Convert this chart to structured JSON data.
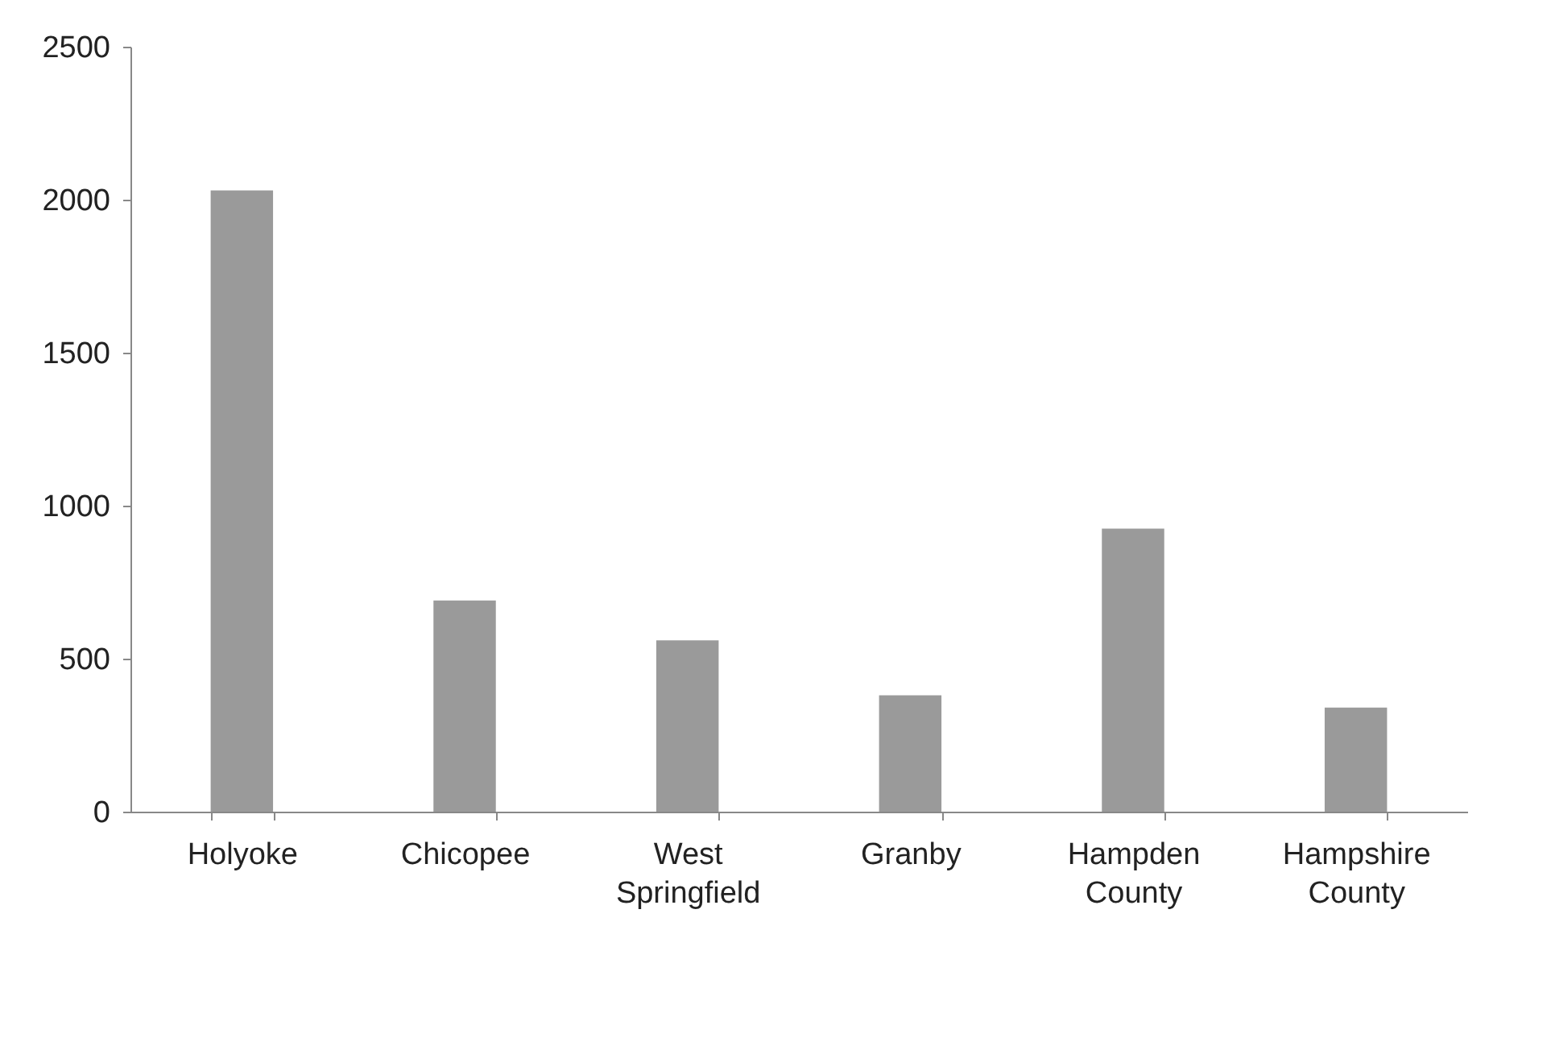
{
  "chart_data": {
    "type": "bar",
    "categories": [
      "Holyoke",
      "Chicopee",
      "West Springfield",
      "Granby",
      "Hampden County",
      "Hampshire County"
    ],
    "values": [
      2030,
      690,
      560,
      380,
      925,
      340
    ],
    "color": "#9a9a9a",
    "ylim": [
      0,
      2500
    ],
    "yticks": [
      0,
      500,
      1000,
      1500,
      2000,
      2500
    ],
    "grid": false
  }
}
